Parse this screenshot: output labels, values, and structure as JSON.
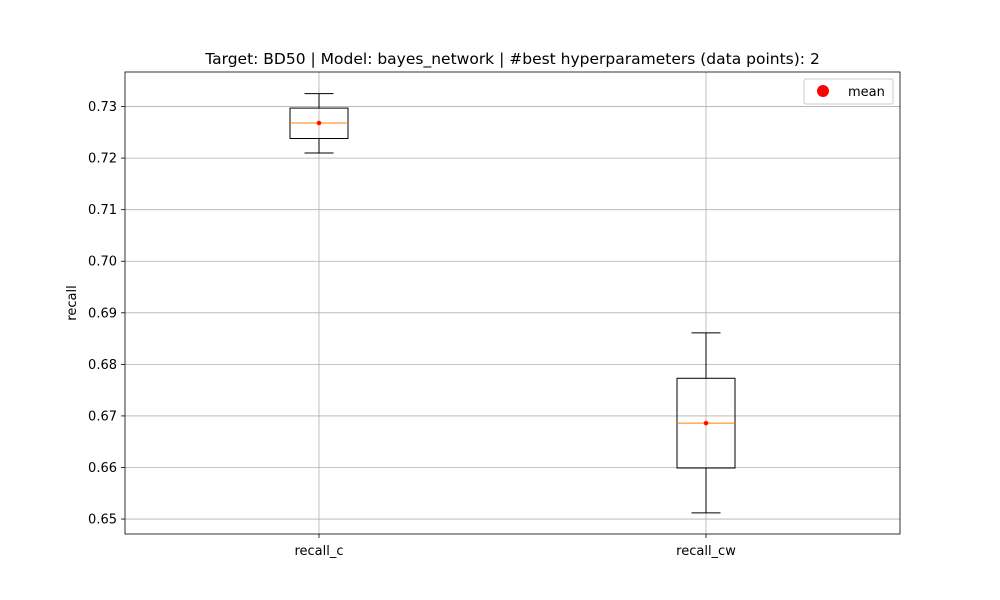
{
  "chart_data": {
    "type": "box",
    "title": "Target: BD50 | Model: bayes_network | #best hyperparameters (data points): 2",
    "xlabel": "",
    "ylabel": "recall",
    "categories": [
      "recall_c",
      "recall_cw"
    ],
    "ylim": [
      0.6471,
      0.7367
    ],
    "yticks": [
      0.65,
      0.66,
      0.67,
      0.68,
      0.69,
      0.7,
      0.71,
      0.72,
      0.73
    ],
    "ytick_labels": [
      "0.65",
      "0.66",
      "0.67",
      "0.68",
      "0.69",
      "0.70",
      "0.71",
      "0.72",
      "0.73"
    ],
    "grid": true,
    "legend": {
      "placement": "top-right",
      "entries": [
        {
          "label": "mean",
          "marker": "circle",
          "color": "#ff0000"
        }
      ]
    },
    "boxes": [
      {
        "category": "recall_c",
        "whisker_low": 0.721,
        "q1": 0.7238,
        "median": 0.7268,
        "q3": 0.7297,
        "whisker_high": 0.7325,
        "mean": 0.7268
      },
      {
        "category": "recall_cw",
        "whisker_low": 0.6512,
        "q1": 0.6599,
        "median": 0.6686,
        "q3": 0.6773,
        "whisker_high": 0.6861,
        "mean": 0.6686
      }
    ],
    "colors": {
      "box": "#000000",
      "median": "#ff7f0e",
      "mean": "#ff0000",
      "grid": "#b0b0b0"
    }
  }
}
